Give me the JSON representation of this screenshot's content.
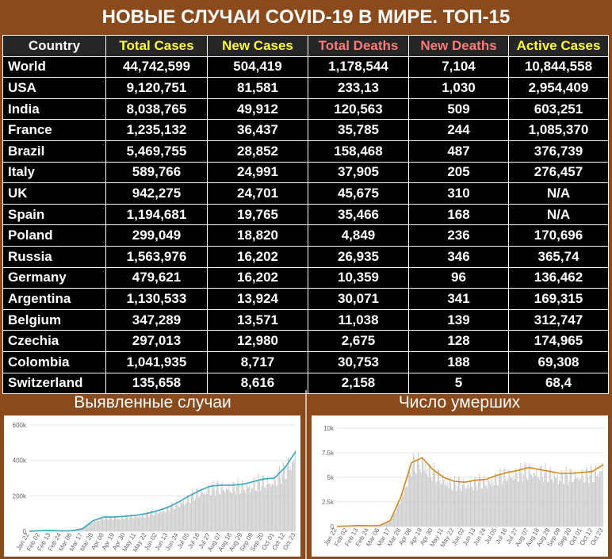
{
  "title": "НОВЫЕ СЛУЧАИ COVID-19 В МИРЕ. ТОП-15",
  "colors": {
    "header_white": "#ffffff",
    "header_yellow": "#ffff33",
    "header_red": "#ff7a7a",
    "line_cases": "#3aa6c4",
    "line_deaths": "#d4881f"
  },
  "table": {
    "headers": [
      "Country",
      "Total Cases",
      "New Cases",
      "Total Deaths",
      "New Deaths",
      "Active Cases"
    ],
    "rows": [
      [
        "World",
        "44,742,599",
        "504,419",
        "1,178,544",
        "7,104",
        "10,844,558"
      ],
      [
        "USA",
        "9,120,751",
        "81,581",
        "233,13",
        "1,030",
        "2,954,409"
      ],
      [
        "India",
        "8,038,765",
        "49,912",
        "120,563",
        "509",
        "603,251"
      ],
      [
        "France",
        "1,235,132",
        "36,437",
        "35,785",
        "244",
        "1,085,370"
      ],
      [
        "Brazil",
        "5,469,755",
        "28,852",
        "158,468",
        "487",
        "376,739"
      ],
      [
        "Italy",
        "589,766",
        "24,991",
        "37,905",
        "205",
        "276,457"
      ],
      [
        "UK",
        "942,275",
        "24,701",
        "45,675",
        "310",
        "N/A"
      ],
      [
        "Spain",
        "1,194,681",
        "19,765",
        "35,466",
        "168",
        "N/A"
      ],
      [
        "Poland",
        "299,049",
        "18,820",
        "4,849",
        "236",
        "170,696"
      ],
      [
        "Russia",
        "1,563,976",
        "16,202",
        "26,935",
        "346",
        "365,74"
      ],
      [
        "Germany",
        "479,621",
        "16,202",
        "10,359",
        "96",
        "136,462"
      ],
      [
        "Argentina",
        "1,130,533",
        "13,924",
        "30,071",
        "341",
        "169,315"
      ],
      [
        "Belgium",
        "347,289",
        "13,571",
        "11,038",
        "139",
        "312,747"
      ],
      [
        "Czechia",
        "297,013",
        "12,980",
        "2,675",
        "128",
        "174,965"
      ],
      [
        "Colombia",
        "1,041,935",
        "8,717",
        "30,753",
        "188",
        "69,308"
      ],
      [
        "Switzerland",
        "135,658",
        "8,616",
        "2,158",
        "5",
        "68,4"
      ]
    ]
  },
  "chart_data": [
    {
      "type": "bar",
      "title": "Выявленные случаи",
      "y_ticks": [
        "0",
        "200k",
        "400k",
        "600k"
      ],
      "ylim": [
        0,
        600000
      ],
      "grid": true,
      "x_ticks": [
        "Jan 22",
        "Feb 02",
        "Feb 13",
        "Feb 24",
        "Mar 06",
        "Mar 17",
        "Mar 28",
        "Apr 08",
        "Apr 19",
        "Apr 30",
        "May 11",
        "May 22",
        "Jun 02",
        "Jun 13",
        "Jun 24",
        "Jul 05",
        "Jul 16",
        "Jul 27",
        "Aug 07",
        "Aug 18",
        "Aug 29",
        "Sep 09",
        "Sep 20",
        "Oct 01",
        "Oct 12",
        "Oct 23"
      ],
      "series_moving_average": [
        {
          "x": "Jan 22",
          "y": 500
        },
        {
          "x": "Feb 02",
          "y": 3000
        },
        {
          "x": "Feb 13",
          "y": 4000
        },
        {
          "x": "Feb 24",
          "y": 2000
        },
        {
          "x": "Mar 06",
          "y": 3000
        },
        {
          "x": "Mar 17",
          "y": 15000
        },
        {
          "x": "Mar 28",
          "y": 60000
        },
        {
          "x": "Apr 08",
          "y": 80000
        },
        {
          "x": "Apr 19",
          "y": 80000
        },
        {
          "x": "Apr 30",
          "y": 85000
        },
        {
          "x": "May 11",
          "y": 90000
        },
        {
          "x": "May 22",
          "y": 100000
        },
        {
          "x": "Jun 02",
          "y": 115000
        },
        {
          "x": "Jun 13",
          "y": 135000
        },
        {
          "x": "Jun 24",
          "y": 165000
        },
        {
          "x": "Jul 05",
          "y": 200000
        },
        {
          "x": "Jul 16",
          "y": 230000
        },
        {
          "x": "Jul 27",
          "y": 255000
        },
        {
          "x": "Aug 07",
          "y": 260000
        },
        {
          "x": "Aug 18",
          "y": 260000
        },
        {
          "x": "Aug 29",
          "y": 265000
        },
        {
          "x": "Sep 09",
          "y": 280000
        },
        {
          "x": "Sep 20",
          "y": 295000
        },
        {
          "x": "Oct 01",
          "y": 300000
        },
        {
          "x": "Oct 12",
          "y": 360000
        },
        {
          "x": "Oct 23",
          "y": 450000
        }
      ]
    },
    {
      "type": "bar",
      "title": "Число умерших",
      "y_ticks": [
        "0",
        "2.5k",
        "5k",
        "7.5k",
        "10k"
      ],
      "ylim": [
        0,
        10000
      ],
      "grid": true,
      "x_ticks": [
        "Jan 22",
        "Feb 02",
        "Feb 13",
        "Feb 24",
        "Mar 06",
        "Mar 17",
        "Mar 28",
        "Apr 08",
        "Apr 19",
        "Apr 30",
        "May 11",
        "May 22",
        "Jun 02",
        "Jun 13",
        "Jun 24",
        "Jul 05",
        "Jul 16",
        "Jul 27",
        "Aug 07",
        "Aug 18",
        "Aug 29",
        "Sep 09",
        "Sep 20",
        "Oct 01",
        "Oct 12",
        "Oct 23"
      ],
      "series_moving_average": [
        {
          "x": "Jan 22",
          "y": 20
        },
        {
          "x": "Feb 02",
          "y": 50
        },
        {
          "x": "Feb 13",
          "y": 100
        },
        {
          "x": "Feb 24",
          "y": 80
        },
        {
          "x": "Mar 06",
          "y": 100
        },
        {
          "x": "Mar 17",
          "y": 600
        },
        {
          "x": "Mar 28",
          "y": 3000
        },
        {
          "x": "Apr 08",
          "y": 6500
        },
        {
          "x": "Apr 19",
          "y": 7000
        },
        {
          "x": "Apr 30",
          "y": 5800
        },
        {
          "x": "May 11",
          "y": 5000
        },
        {
          "x": "May 22",
          "y": 4600
        },
        {
          "x": "Jun 02",
          "y": 4500
        },
        {
          "x": "Jun 13",
          "y": 4700
        },
        {
          "x": "Jun 24",
          "y": 4800
        },
        {
          "x": "Jul 05",
          "y": 5200
        },
        {
          "x": "Jul 16",
          "y": 5500
        },
        {
          "x": "Jul 27",
          "y": 5700
        },
        {
          "x": "Aug 07",
          "y": 6000
        },
        {
          "x": "Aug 18",
          "y": 5800
        },
        {
          "x": "Aug 29",
          "y": 5600
        },
        {
          "x": "Sep 09",
          "y": 5400
        },
        {
          "x": "Sep 20",
          "y": 5400
        },
        {
          "x": "Oct 01",
          "y": 5500
        },
        {
          "x": "Oct 12",
          "y": 5600
        },
        {
          "x": "Oct 23",
          "y": 6300
        }
      ]
    }
  ]
}
